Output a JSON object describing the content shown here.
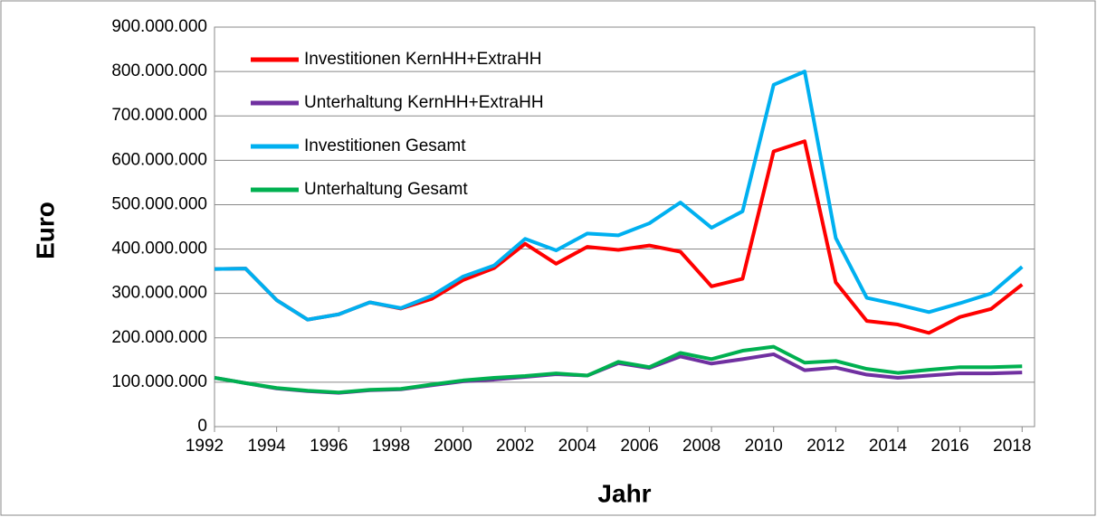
{
  "chart_data": {
    "type": "line",
    "x": [
      1992,
      1993,
      1994,
      1995,
      1996,
      1997,
      1998,
      1999,
      2000,
      2001,
      2002,
      2003,
      2004,
      2005,
      2006,
      2007,
      2008,
      2009,
      2010,
      2011,
      2012,
      2013,
      2014,
      2015,
      2016,
      2017,
      2018
    ],
    "series": [
      {
        "name": "Investitionen KernHH+ExtraHH",
        "color": "#ff0000",
        "values": [
          355000000,
          356000000,
          285000000,
          241000000,
          253000000,
          280000000,
          266000000,
          288000000,
          330000000,
          357000000,
          412000000,
          367000000,
          405000000,
          398000000,
          408000000,
          394000000,
          316000000,
          333000000,
          620000000,
          643000000,
          325000000,
          238000000,
          230000000,
          211000000,
          247000000,
          265000000,
          320000000
        ]
      },
      {
        "name": "Unterhaltung KernHH+ExtraHH",
        "color": "#7030a0",
        "values": [
          110000000,
          98000000,
          86000000,
          80000000,
          76000000,
          82000000,
          84000000,
          93000000,
          102000000,
          106000000,
          112000000,
          118000000,
          115000000,
          143000000,
          132000000,
          158000000,
          142000000,
          152000000,
          163000000,
          127000000,
          133000000,
          117000000,
          110000000,
          115000000,
          120000000,
          120000000,
          122000000
        ]
      },
      {
        "name": "Investitionen Gesamt",
        "color": "#00b0f0",
        "values": [
          355000000,
          356000000,
          285000000,
          241000000,
          253000000,
          280000000,
          267000000,
          295000000,
          338000000,
          363000000,
          423000000,
          397000000,
          435000000,
          431000000,
          458000000,
          505000000,
          448000000,
          485000000,
          770000000,
          800000000,
          425000000,
          290000000,
          275000000,
          258000000,
          278000000,
          300000000,
          360000000
        ]
      },
      {
        "name": "Unterhaltung Gesamt",
        "color": "#00b050",
        "values": [
          110000000,
          98000000,
          87000000,
          81000000,
          77000000,
          83000000,
          85000000,
          95000000,
          104000000,
          110000000,
          114000000,
          120000000,
          115000000,
          146000000,
          134000000,
          166000000,
          152000000,
          171000000,
          180000000,
          144000000,
          148000000,
          130000000,
          121000000,
          128000000,
          134000000,
          134000000,
          136000000
        ]
      }
    ],
    "xlabel": "Jahr",
    "ylabel": "Euro",
    "xlim": [
      1992,
      2018.4
    ],
    "xticks": [
      1992,
      1994,
      1996,
      1998,
      2000,
      2002,
      2004,
      2006,
      2008,
      2010,
      2012,
      2014,
      2016,
      2018
    ],
    "ylim": [
      0,
      900000000
    ],
    "yticks": [
      0,
      {
        "value": 100000000,
        "label": "100.000.000"
      },
      {
        "value": 200000000,
        "label": "200.000.000"
      },
      {
        "value": 300000000,
        "label": "300.000.000"
      },
      {
        "value": 400000000,
        "label": "400.000.000"
      },
      {
        "value": 500000000,
        "label": "500.000.000"
      },
      {
        "value": 600000000,
        "label": "600.000.000"
      },
      {
        "value": 700000000,
        "label": "700.000.000"
      },
      {
        "value": 800000000,
        "label": "800.000.000"
      },
      {
        "value": 900000000,
        "label": "900.000.000"
      }
    ],
    "grid": true,
    "legend": "upper left"
  }
}
